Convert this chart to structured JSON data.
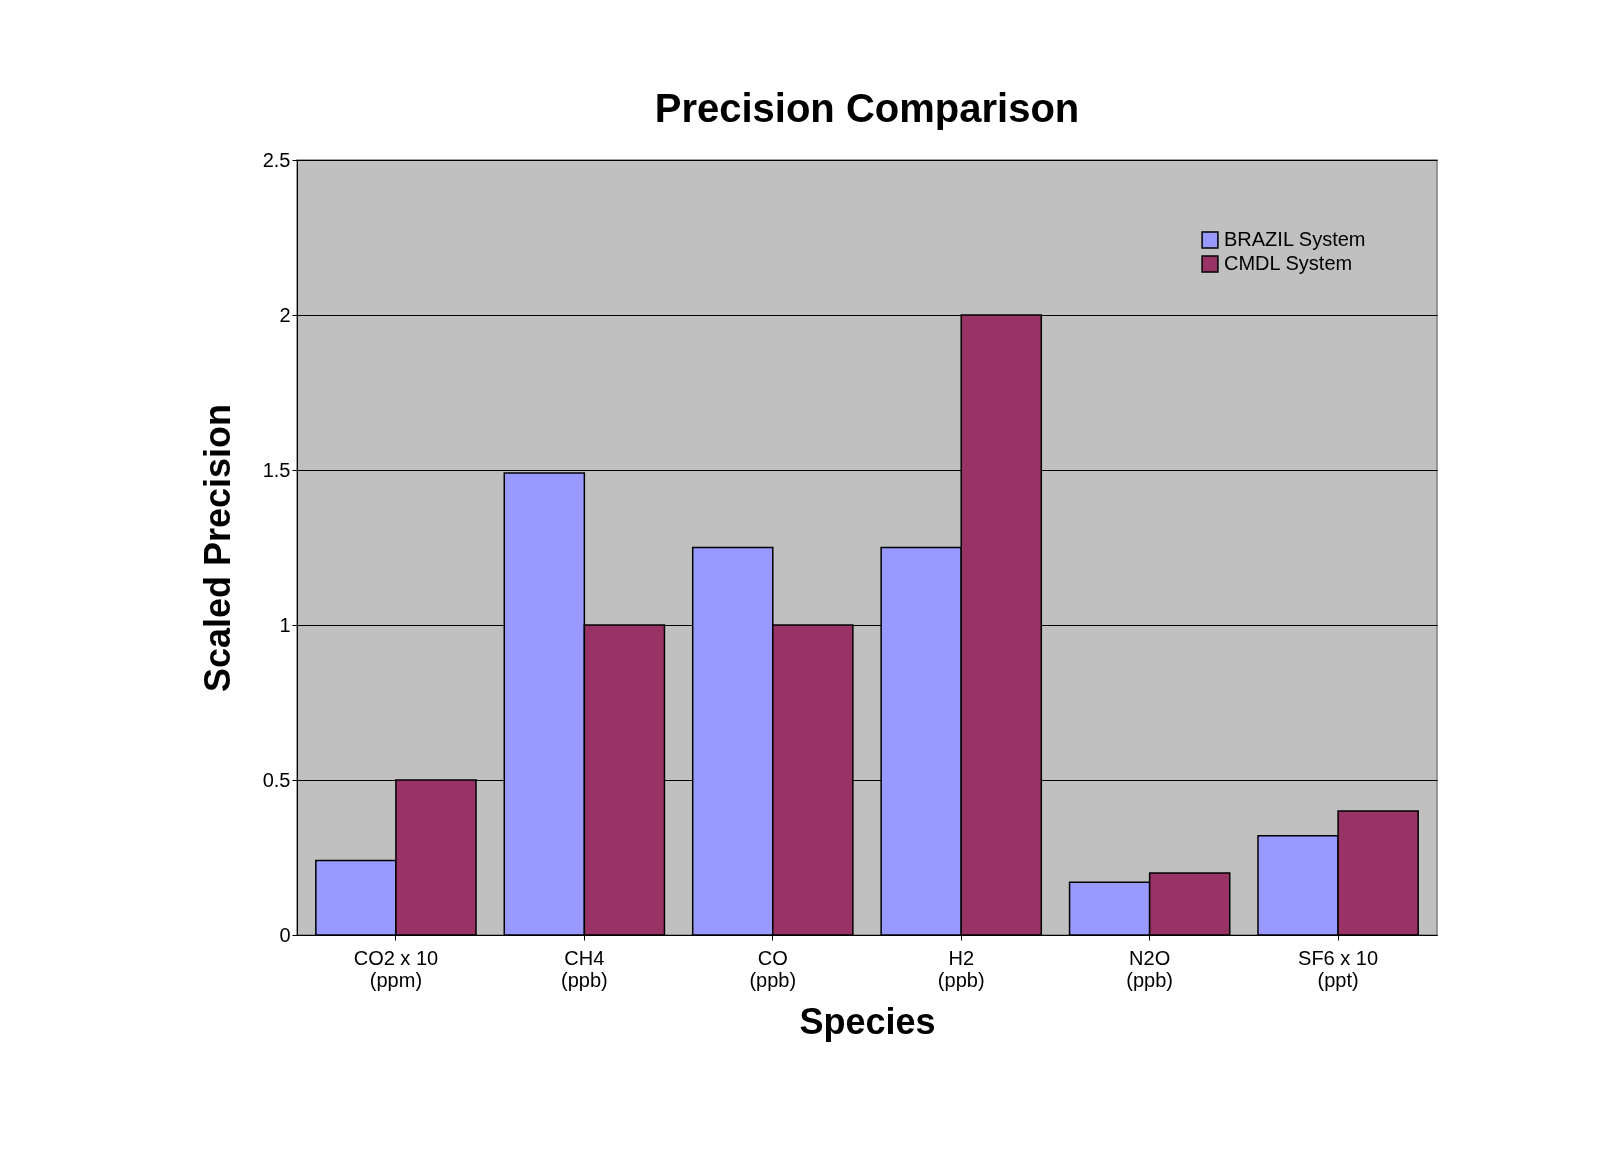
{
  "chart_data": {
    "type": "bar",
    "title": "Precision Comparison",
    "xlabel": "Species",
    "ylabel": "Scaled Precision",
    "categories": [
      "CO2 x 10\n(ppm)",
      "CH4\n(ppb)",
      "CO\n(ppb)",
      "H2\n(ppb)",
      "N2O\n(ppb)",
      "SF6 x 10\n(ppt)"
    ],
    "series": [
      {
        "name": "BRAZIL System",
        "color": "#9999ff",
        "values": [
          0.24,
          1.49,
          1.25,
          1.25,
          0.17,
          0.32
        ]
      },
      {
        "name": "CMDL System",
        "color": "#993366",
        "values": [
          0.5,
          1.0,
          1.0,
          2.0,
          0.2,
          0.4
        ]
      }
    ],
    "ylim": [
      0,
      2.5
    ],
    "yticks": [
      0,
      0.5,
      1,
      1.5,
      2,
      2.5
    ],
    "grid": "y",
    "legend": "top right"
  }
}
